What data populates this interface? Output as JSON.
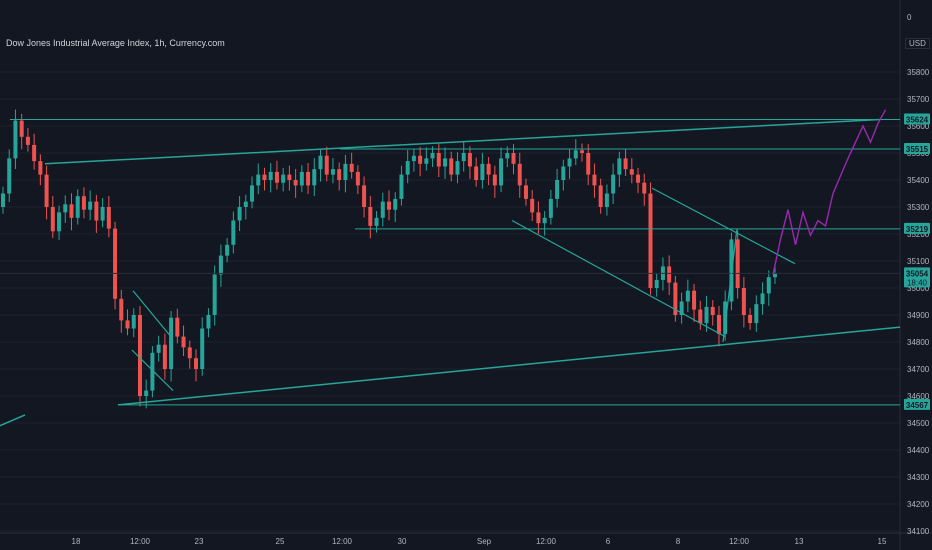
{
  "chart_data": {
    "type": "candlestick",
    "title": "Dow Jones Industrial Average Index, 1h, Currency.com",
    "currency": "USD",
    "top_value": "0",
    "ylim": [
      34100,
      35900
    ],
    "y_ticks": [
      35800,
      35700,
      35600,
      35500,
      35400,
      35300,
      35200,
      35100,
      35000,
      34900,
      34800,
      34700,
      34600,
      34500,
      34400,
      34300,
      34200,
      34100
    ],
    "x_ticks": [
      "18",
      "12:00",
      "23",
      "25",
      "12:00",
      "30",
      "Sep",
      "12:00",
      "6",
      "8",
      "12:00",
      "13",
      "15"
    ],
    "price_labels": [
      {
        "value": 35624,
        "text": "35624",
        "color": "#26a69a"
      },
      {
        "value": 35515,
        "text": "35515",
        "color": "#26a69a"
      },
      {
        "value": 35219,
        "text": "35219",
        "color": "#26a69a"
      },
      {
        "value": 35054,
        "text": "35054",
        "sub": "18:40",
        "color": "#26a69a"
      },
      {
        "value": 34567,
        "text": "34567",
        "color": "#26a69a"
      }
    ],
    "horizontal_levels": [
      35624,
      35515,
      35219,
      34567
    ],
    "last_price": 35054,
    "colors": {
      "up": "#26a69a",
      "down": "#ef5350",
      "line": "#26a69a",
      "projection": "#9c27b0"
    },
    "projection_path": [
      [
        0,
        35050
      ],
      [
        2,
        35180
      ],
      [
        4,
        35290
      ],
      [
        6,
        35160
      ],
      [
        8,
        35280
      ],
      [
        10,
        35195
      ],
      [
        12,
        35250
      ],
      [
        14,
        35230
      ],
      [
        16,
        35350
      ],
      [
        20,
        35480
      ],
      [
        24,
        35600
      ],
      [
        26,
        35540
      ],
      [
        28,
        35610
      ],
      [
        30,
        35660
      ]
    ],
    "candles_close": [
      35350,
      35480,
      35620,
      35560,
      35530,
      35470,
      35420,
      35300,
      35210,
      35280,
      35310,
      35260,
      35340,
      35290,
      35320,
      35250,
      35300,
      35220,
      34960,
      34880,
      34850,
      34900,
      34600,
      34620,
      34760,
      34790,
      34700,
      34890,
      34820,
      34780,
      34740,
      34700,
      34850,
      34900,
      35050,
      35120,
      35160,
      35250,
      35300,
      35320,
      35380,
      35420,
      35400,
      35430,
      35390,
      35420,
      35400,
      35380,
      35430,
      35380,
      35440,
      35490,
      35420,
      35440,
      35400,
      35460,
      35430,
      35380,
      35300,
      35230,
      35260,
      35320,
      35290,
      35330,
      35420,
      35470,
      35490,
      35460,
      35480,
      35500,
      35450,
      35480,
      35420,
      35470,
      35500,
      35450,
      35400,
      35460,
      35420,
      35380,
      35480,
      35500,
      35460,
      35380,
      35330,
      35280,
      35240,
      35260,
      35330,
      35400,
      35450,
      35480,
      35510,
      35500,
      35420,
      35380,
      35300,
      35350,
      35420,
      35480,
      35440,
      35420,
      35390,
      35350,
      35000,
      35030,
      35080,
      35020,
      34900,
      34950,
      34990,
      34920,
      34870,
      34930,
      34900,
      34830,
      34950,
      35180,
      35000,
      34900,
      34870,
      34940,
      34980,
      35040,
      35054
    ]
  },
  "note": "candles_close are approximate closes read from the picture; open/high/low derived in script"
}
